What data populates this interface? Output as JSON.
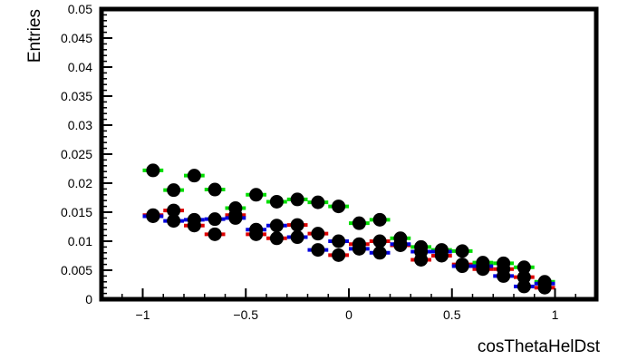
{
  "chart_data": {
    "type": "scatter",
    "title": "",
    "xlabel": "cosThetaHelDst",
    "ylabel": "Entries",
    "xlim": [
      -1.2,
      1.2
    ],
    "ylim": [
      0,
      0.05
    ],
    "xticks": [
      -1,
      -0.5,
      0,
      0.5,
      1
    ],
    "xtick_labels": [
      "−1",
      "−0.5",
      "0",
      "0.5",
      "1"
    ],
    "yticks": [
      0,
      0.005,
      0.01,
      0.015,
      0.02,
      0.025,
      0.03,
      0.035,
      0.04,
      0.045,
      0.05
    ],
    "ytick_labels": [
      "0",
      "0.005",
      "0.01",
      "0.015",
      "0.02",
      "0.025",
      "0.03",
      "0.035",
      "0.04",
      "0.045",
      "0.05"
    ],
    "grid": false,
    "legend": "none",
    "bin_halfwidth": 0.05,
    "x": [
      -0.95,
      -0.85,
      -0.75,
      -0.65,
      -0.55,
      -0.45,
      -0.35,
      -0.25,
      -0.15,
      -0.05,
      0.05,
      0.15,
      0.25,
      0.35,
      0.45,
      0.55,
      0.65,
      0.75,
      0.85,
      0.95
    ],
    "series": [
      {
        "color": "#00dd00",
        "values": [
          0.0222,
          0.0188,
          0.0213,
          0.0189,
          0.0157,
          0.018,
          0.0168,
          0.0172,
          0.0167,
          0.016,
          0.0131,
          0.0137,
          0.0105,
          0.009,
          0.0085,
          0.0083,
          0.0063,
          0.0062,
          0.0055,
          0.003
        ]
      },
      {
        "color": "#dd0000",
        "values": [
          0.0145,
          0.0153,
          0.0127,
          0.0112,
          0.0145,
          0.0112,
          0.0105,
          0.0128,
          0.0113,
          0.0076,
          0.0095,
          0.01,
          0.0093,
          0.0068,
          0.0075,
          0.006,
          0.0052,
          0.0052,
          0.0038,
          0.002
        ]
      },
      {
        "color": "#0000dd",
        "values": [
          0.0143,
          0.0135,
          0.0137,
          0.0138,
          0.014,
          0.012,
          0.0127,
          0.0107,
          0.0085,
          0.01,
          0.0087,
          0.008,
          0.0095,
          0.0082,
          0.0082,
          0.0057,
          0.0057,
          0.004,
          0.0022,
          0.0027
        ]
      }
    ]
  }
}
